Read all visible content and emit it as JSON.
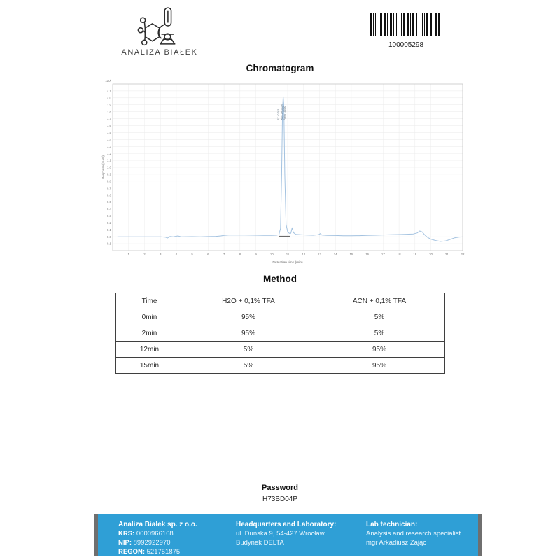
{
  "header": {
    "logo_text": "ANALIZA BIAŁEK",
    "barcode_value": "100005298"
  },
  "chart_data": {
    "type": "line",
    "title": "Chromatogram",
    "xlabel": "Retention time (min)",
    "ylabel": "Response (mAU)",
    "y_multiplier_label": "x10²",
    "grid": true,
    "legend": "none",
    "xlim": [
      0,
      22
    ],
    "ylim": [
      -0.2,
      2.2
    ],
    "x_ticks": [
      1,
      2,
      3,
      4,
      5,
      6,
      7,
      8,
      9,
      10,
      11,
      12,
      13,
      14,
      15,
      16,
      17,
      18,
      19,
      20,
      21,
      22
    ],
    "y_ticks": [
      -0.1,
      0,
      0.1,
      0.2,
      0.3,
      0.4,
      0.5,
      0.6,
      0.7,
      0.8,
      0.9,
      1,
      1.1,
      1.2,
      1.3,
      1.4,
      1.5,
      1.6,
      1.7,
      1.8,
      1.9,
      2,
      2.1
    ],
    "line_color": "#a3c2e0",
    "peak_annotation": {
      "lines": [
        "RT 10.702",
        "Area 14850240",
        "Purity 100.00"
      ]
    },
    "integration_baseline": [
      [
        10.45,
        0.008
      ],
      [
        11.15,
        0.008
      ]
    ],
    "series": [
      {
        "name": "UV trace",
        "points": [
          [
            0.3,
            0
          ],
          [
            1,
            0
          ],
          [
            1.5,
            0
          ],
          [
            2,
            0
          ],
          [
            2.5,
            0
          ],
          [
            3,
            0
          ],
          [
            3.3,
            -0.005
          ],
          [
            3.45,
            -0.018
          ],
          [
            3.6,
            0.004
          ],
          [
            3.8,
            0
          ],
          [
            4.1,
            0.012
          ],
          [
            4.3,
            0
          ],
          [
            5,
            0.002
          ],
          [
            5.5,
            0
          ],
          [
            6,
            0.003
          ],
          [
            6.5,
            0.006
          ],
          [
            6.8,
            0.012
          ],
          [
            7,
            0.02
          ],
          [
            7.3,
            0.024
          ],
          [
            7.8,
            0.026
          ],
          [
            8.3,
            0.024
          ],
          [
            9,
            0.022
          ],
          [
            9.5,
            0.02
          ],
          [
            10,
            0.02
          ],
          [
            10.3,
            0.022
          ],
          [
            10.45,
            0.03
          ],
          [
            10.55,
            0.12
          ],
          [
            10.62,
            0.9
          ],
          [
            10.68,
            1.85
          ],
          [
            10.72,
            2.02
          ],
          [
            10.76,
            1.9
          ],
          [
            10.82,
            0.9
          ],
          [
            10.9,
            0.18
          ],
          [
            11,
            0.07
          ],
          [
            11.1,
            0.05
          ],
          [
            11.2,
            0.05
          ],
          [
            11.28,
            0.13
          ],
          [
            11.36,
            0.06
          ],
          [
            11.5,
            0.035
          ],
          [
            11.8,
            0.03
          ],
          [
            12.2,
            0.025
          ],
          [
            12.6,
            0.022
          ],
          [
            12.95,
            0.03
          ],
          [
            13.05,
            0.045
          ],
          [
            13.15,
            0.025
          ],
          [
            13.5,
            0.02
          ],
          [
            14,
            0.018
          ],
          [
            14.5,
            0.015
          ],
          [
            15,
            0.015
          ],
          [
            15.5,
            0.016
          ],
          [
            16,
            0.02
          ],
          [
            16.5,
            0.022
          ],
          [
            17,
            0.026
          ],
          [
            17.5,
            0.03
          ],
          [
            18,
            0.032
          ],
          [
            18.5,
            0.036
          ],
          [
            18.9,
            0.04
          ],
          [
            19.15,
            0.055
          ],
          [
            19.3,
            0.082
          ],
          [
            19.45,
            0.07
          ],
          [
            19.6,
            0.03
          ],
          [
            19.8,
            -0.01
          ],
          [
            20,
            -0.035
          ],
          [
            20.3,
            -0.055
          ],
          [
            20.6,
            -0.068
          ],
          [
            20.9,
            -0.062
          ],
          [
            21.2,
            -0.04
          ],
          [
            21.5,
            -0.015
          ],
          [
            21.8,
            -0.004
          ],
          [
            22,
            -0.002
          ]
        ]
      }
    ]
  },
  "method_table": {
    "title": "Method",
    "headers": [
      "Time",
      "H2O + 0,1% TFA",
      "ACN + 0,1% TFA"
    ],
    "rows": [
      [
        "0min",
        "95%",
        "5%"
      ],
      [
        "2min",
        "95%",
        "5%"
      ],
      [
        "12min",
        "5%",
        "95%"
      ],
      [
        "15min",
        "5%",
        "95%"
      ]
    ]
  },
  "password": {
    "label": "Password",
    "value": "H73BD04P"
  },
  "footer": {
    "bg_color": "#2f9fd6",
    "company": {
      "name": "Analiza Białek sp. z o.o.",
      "krs_label": "KRS:",
      "krs": "0000966168",
      "nip_label": "NIP:",
      "nip": "8992922970",
      "regon_label": "REGON:",
      "regon": "521751875"
    },
    "hq": {
      "title": "Headquarters and Laboratory:",
      "line1": "ul. Duńska 9, 54-427 Wrocław",
      "line2": "Budynek DELTA"
    },
    "tech": {
      "title": "Lab technician:",
      "line1": "Analysis and research specialist",
      "line2": "mgr Arkadiusz Zając"
    }
  }
}
